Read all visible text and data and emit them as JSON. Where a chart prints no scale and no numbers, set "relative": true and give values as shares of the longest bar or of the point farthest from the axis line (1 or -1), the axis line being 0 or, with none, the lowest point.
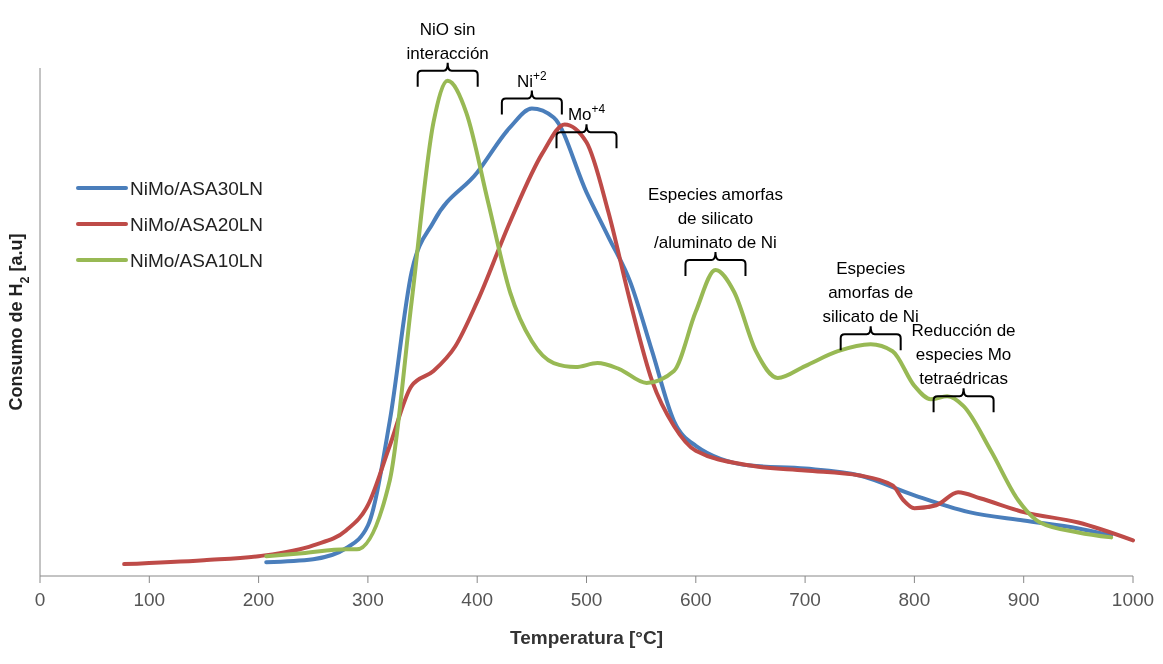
{
  "chart_data": {
    "type": "line",
    "relative": true,
    "xlabel": "Temperatura [°C]",
    "ylabel": "Consumo de H$_{2}$ [a.u]",
    "xlim": [
      0,
      1000
    ],
    "xticks": [
      0,
      100,
      200,
      300,
      400,
      500,
      600,
      700,
      800,
      900,
      1000
    ],
    "grid": false,
    "legend": "top left",
    "marker": "none",
    "line_style": "solid",
    "series": [
      {
        "name": "NiMo/ASA30LN",
        "color": "#4a7ebb",
        "x": [
          207,
          250,
          280,
          300,
          320,
          340,
          360,
          400,
          430,
          450,
          470,
          500,
          520,
          540,
          560,
          580,
          600,
          650,
          700,
          750,
          800,
          850,
          900,
          950,
          980
        ],
        "values": [
          0.028,
          0.034,
          0.056,
          0.102,
          0.313,
          0.614,
          0.715,
          0.815,
          0.906,
          0.944,
          0.926,
          0.775,
          0.685,
          0.594,
          0.454,
          0.313,
          0.263,
          0.223,
          0.217,
          0.203,
          0.163,
          0.129,
          0.112,
          0.096,
          0.082
        ]
      },
      {
        "name": "NiMo/ASA20LN",
        "color": "#be4b48",
        "x": [
          77,
          150,
          200,
          250,
          280,
          300,
          320,
          340,
          360,
          380,
          400,
          430,
          460,
          480,
          500,
          520,
          540,
          560,
          580,
          600,
          650,
          700,
          750,
          780,
          790,
          800,
          820,
          840,
          860,
          900,
          950,
          1000
        ],
        "values": [
          0.024,
          0.032,
          0.04,
          0.062,
          0.092,
          0.143,
          0.263,
          0.384,
          0.414,
          0.464,
          0.554,
          0.715,
          0.855,
          0.912,
          0.876,
          0.735,
          0.554,
          0.394,
          0.303,
          0.253,
          0.223,
          0.213,
          0.203,
          0.183,
          0.153,
          0.137,
          0.143,
          0.169,
          0.157,
          0.129,
          0.108,
          0.072
        ]
      },
      {
        "name": "NiMo/ASA10LN",
        "color": "#98b954",
        "x": [
          207,
          240,
          280,
          290,
          320,
          340,
          360,
          373,
          390,
          410,
          430,
          450,
          470,
          490,
          510,
          530,
          555,
          580,
          600,
          618,
          635,
          655,
          675,
          700,
          730,
          760,
          780,
          800,
          815,
          830,
          845,
          870,
          895,
          915,
          950,
          980
        ],
        "values": [
          0.04,
          0.046,
          0.054,
          0.054,
          0.193,
          0.554,
          0.916,
          1,
          0.936,
          0.755,
          0.574,
          0.474,
          0.43,
          0.422,
          0.43,
          0.418,
          0.39,
          0.414,
          0.534,
          0.618,
          0.574,
          0.454,
          0.4,
          0.424,
          0.454,
          0.468,
          0.454,
          0.384,
          0.357,
          0.363,
          0.343,
          0.253,
          0.153,
          0.108,
          0.088,
          0.078
        ]
      }
    ],
    "annotations": [
      {
        "text": "NiO sin\ninteracción",
        "x": 373,
        "y": 1
      },
      {
        "text": "Ni$^{+2}$",
        "x": 450,
        "y": 0.944
      },
      {
        "text": "Mo$^{+4}$",
        "x": 500,
        "y": 0.876
      },
      {
        "text": "Especies amorfas\nde silicato\n/aluminato de Ni",
        "x": 618,
        "y": 0.618
      },
      {
        "text": "Especies\namorfas de\nsilicato de Ni",
        "x": 760,
        "y": 0.468
      },
      {
        "text": "Reducción de\nespecies Mo\ntetraédricas",
        "x": 845,
        "y": 0.343
      }
    ]
  }
}
